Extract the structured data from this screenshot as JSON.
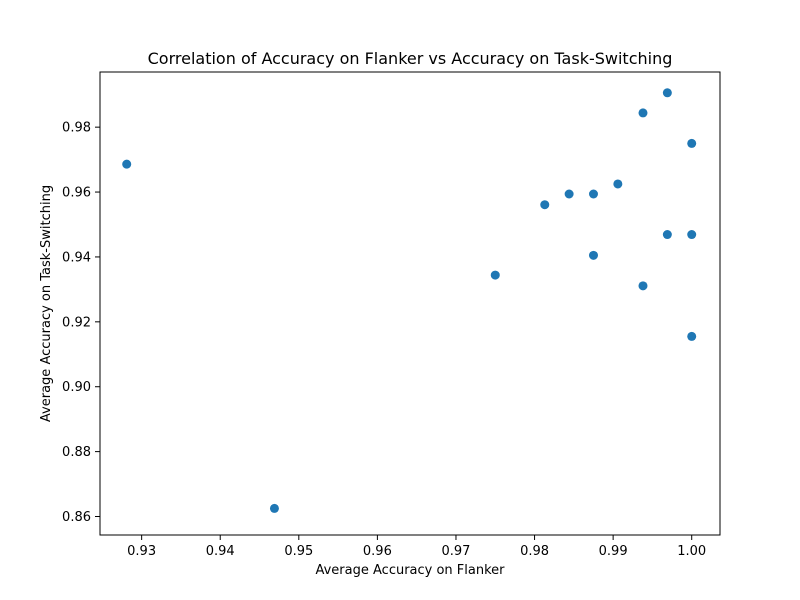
{
  "chart_data": {
    "type": "scatter",
    "title": "Correlation of Accuracy on Flanker vs Accuracy on Task-Switching",
    "xlabel": "Average Accuracy on Flanker",
    "ylabel": "Average Accuracy on Task-Switching",
    "xlim": [
      0.9247,
      1.0036
    ],
    "ylim": [
      0.8543,
      0.997
    ],
    "xticks": [
      0.93,
      0.94,
      0.95,
      0.96,
      0.97,
      0.98,
      0.99,
      1.0
    ],
    "xtick_labels": [
      "0.93",
      "0.94",
      "0.95",
      "0.96",
      "0.97",
      "0.98",
      "0.99",
      "1.00"
    ],
    "yticks": [
      0.86,
      0.88,
      0.9,
      0.92,
      0.94,
      0.96,
      0.98
    ],
    "ytick_labels": [
      "0.86",
      "0.88",
      "0.90",
      "0.92",
      "0.94",
      "0.96",
      "0.98"
    ],
    "grid": false,
    "marker_color": "#1f77b4",
    "points": [
      {
        "x": 0.9281,
        "y": 0.9686
      },
      {
        "x": 0.9469,
        "y": 0.8625
      },
      {
        "x": 0.975,
        "y": 0.9344
      },
      {
        "x": 0.9813,
        "y": 0.9561
      },
      {
        "x": 0.9844,
        "y": 0.9594
      },
      {
        "x": 0.9875,
        "y": 0.9594
      },
      {
        "x": 0.9875,
        "y": 0.9405
      },
      {
        "x": 0.9906,
        "y": 0.9625
      },
      {
        "x": 0.9938,
        "y": 0.9844
      },
      {
        "x": 0.9938,
        "y": 0.9311
      },
      {
        "x": 0.9969,
        "y": 0.9906
      },
      {
        "x": 0.9969,
        "y": 0.9469
      },
      {
        "x": 1.0,
        "y": 0.975
      },
      {
        "x": 1.0,
        "y": 0.9469
      },
      {
        "x": 1.0,
        "y": 0.9155
      }
    ]
  }
}
